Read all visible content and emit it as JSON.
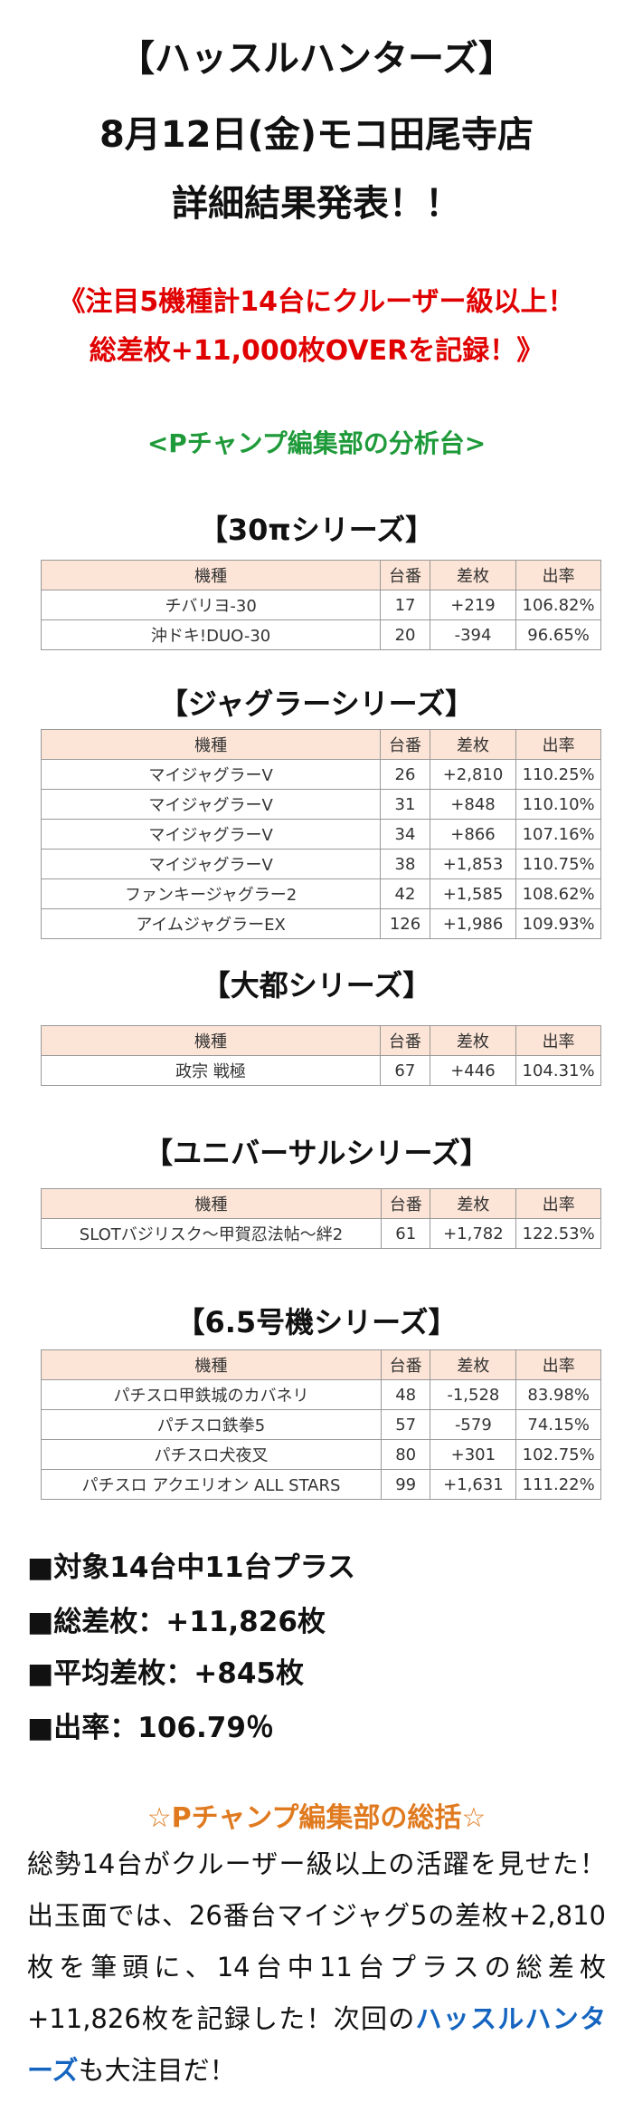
{
  "header": {
    "lines": [
      "【ハッスルハンターズ】",
      "8月12日(金)モコ田尾寺店",
      "詳細結果発表！！"
    ]
  },
  "highlight": {
    "lines": [
      "《注目5機種計14台にクルーザー級以上！",
      "総差枚+11,000枚OVERを記録！》"
    ]
  },
  "subtitle": "<Pチャンプ編集部の分析台>",
  "sections": [
    {
      "title": "【30πシリーズ】",
      "table": {
        "columns": [
          "機種",
          "台番",
          "差枚",
          "出率"
        ],
        "rows": [
          [
            "チバリヨ-30",
            "17",
            "+219",
            "106.82%"
          ],
          [
            "沖ドキ!DUO-30",
            "20",
            "-394",
            "96.65%"
          ]
        ]
      }
    },
    {
      "title": "【ジャグラーシリーズ】",
      "table": {
        "columns": [
          "機種",
          "台番",
          "差枚",
          "出率"
        ],
        "rows": [
          [
            "マイジャグラーV",
            "26",
            "+2,810",
            "110.25%"
          ],
          [
            "マイジャグラーV",
            "31",
            "+848",
            "110.10%"
          ],
          [
            "マイジャグラーV",
            "34",
            "+866",
            "107.16%"
          ],
          [
            "マイジャグラーV",
            "38",
            "+1,853",
            "110.75%"
          ],
          [
            "ファンキージャグラー2",
            "42",
            "+1,585",
            "108.62%"
          ],
          [
            "アイムジャグラーEX",
            "126",
            "+1,986",
            "109.93%"
          ]
        ]
      }
    },
    {
      "title": "【大都シリーズ】",
      "table": {
        "columns": [
          "機種",
          "台番",
          "差枚",
          "出率"
        ],
        "rows": [
          [
            "政宗 戦極",
            "67",
            "+446",
            "104.31%"
          ]
        ]
      }
    },
    {
      "title": "【ユニバーサルシリーズ】",
      "table": {
        "columns": [
          "機種",
          "台番",
          "差枚",
          "出率"
        ],
        "rows": [
          [
            "SLOTバジリスク～甲賀忍法帖～絆2",
            "61",
            "+1,782",
            "122.53%"
          ]
        ]
      }
    },
    {
      "title": "【6.5号機シリーズ】",
      "table": {
        "columns": [
          "機種",
          "台番",
          "差枚",
          "出率"
        ],
        "rows": [
          [
            "パチスロ甲鉄城のカバネリ",
            "48",
            "-1,528",
            "83.98%"
          ],
          [
            "パチスロ鉄拳5",
            "57",
            "-579",
            "74.15%"
          ],
          [
            "パチスロ犬夜叉",
            "80",
            "+301",
            "102.75%"
          ],
          [
            "パチスロ アクエリオン ALL STARS",
            "99",
            "+1,631",
            "111.22%"
          ]
        ]
      }
    }
  ],
  "summary": [
    "■対象14台中11台プラス",
    "■総差枚：+11,826枚",
    "■平均差枚：+845枚",
    "■出率：106.79％"
  ],
  "review": {
    "title": "☆Pチャンプ編集部の総括☆",
    "text_before": "総勢14台がクルーザー級以上の活躍を見せた！出玉面では、26番台マイジャグ5の差枚+2,810枚を筆頭に、14台中11台プラスの総差枚+11,826枚を記録した！次回の",
    "text_highlight": "ハッスルハンターズ",
    "text_after": "も大注目だ！"
  }
}
